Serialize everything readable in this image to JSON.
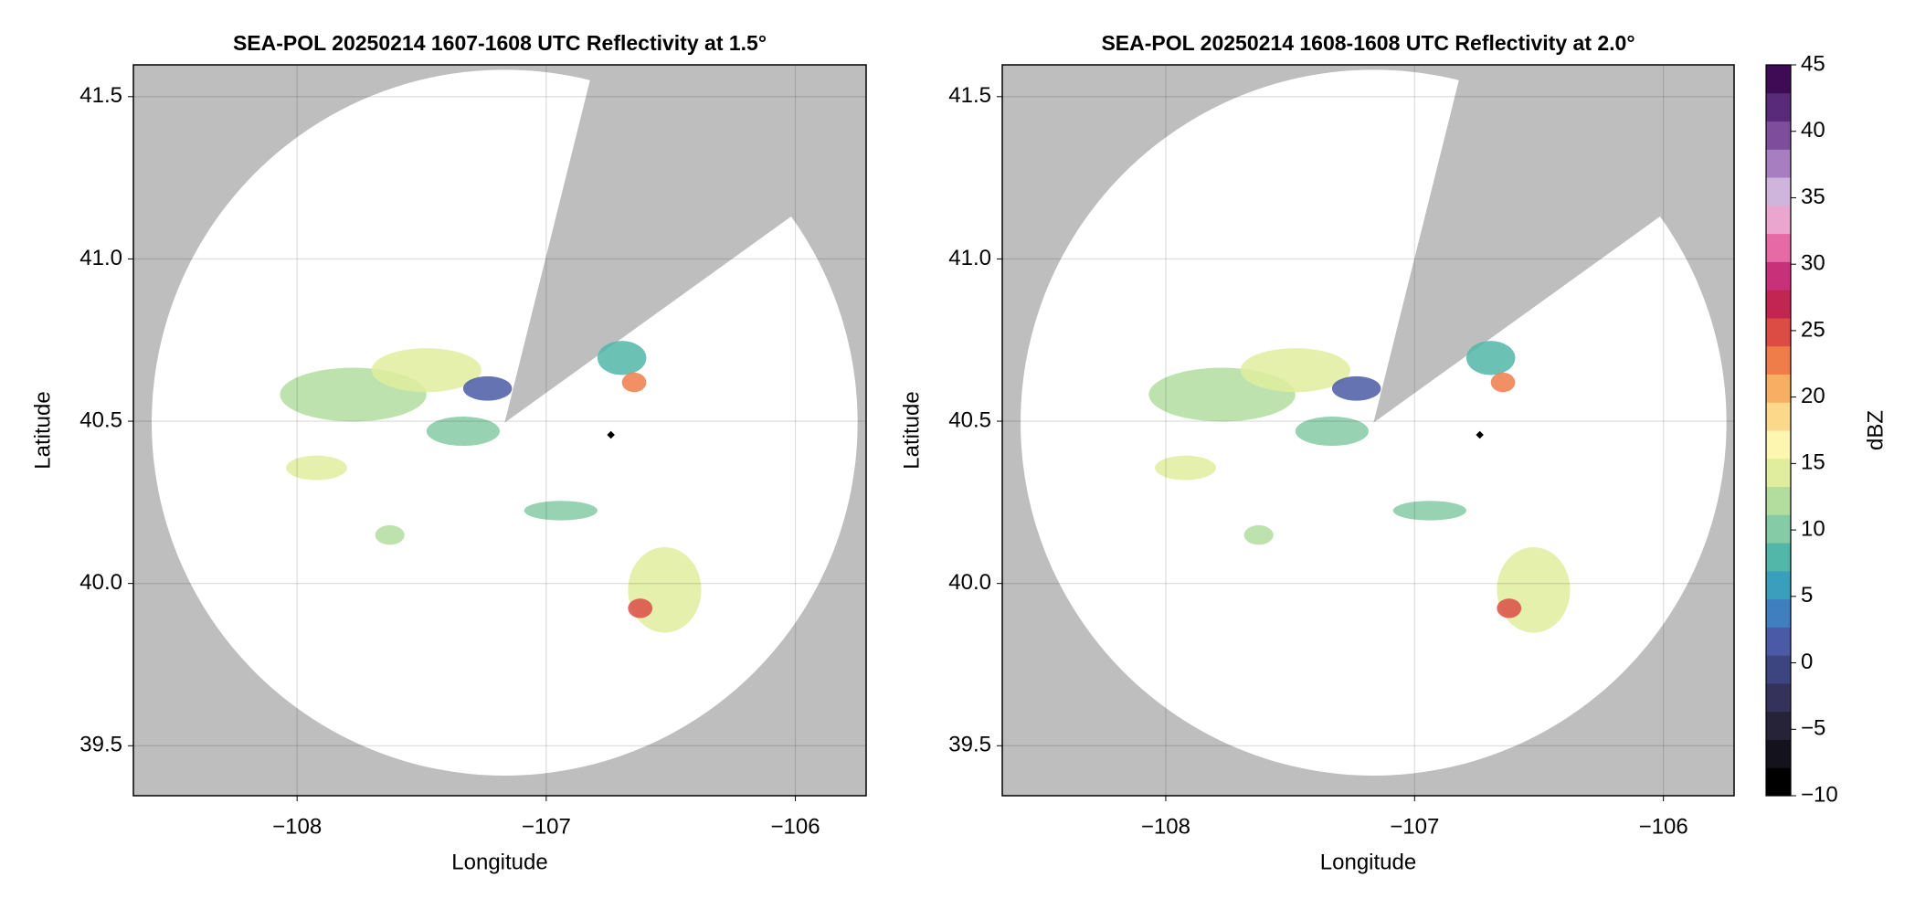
{
  "chart_data": [
    {
      "type": "radar",
      "title": "SEA-POL 20250214 1607-1608 UTC Reflectivity at 1.5°",
      "xlabel": "Longitude",
      "ylabel": "Latitude",
      "xlim": [
        -108.657,
        -105.716
      ],
      "ylim": [
        39.346,
        41.598
      ],
      "xticks": [
        {
          "value": -108,
          "label": "−108"
        },
        {
          "value": -107,
          "label": "−107"
        },
        {
          "value": -106,
          "label": "−106"
        }
      ],
      "yticks": [
        39.5,
        {
          "value": 40,
          "label": "40.0"
        },
        40.5,
        {
          "value": 41,
          "label": "41.0"
        },
        41.5
      ],
      "grid": true,
      "background": "#bebebe"
    },
    {
      "type": "radar",
      "title": "SEA-POL 20250214 1608-1608 UTC Reflectivity at 2.0°",
      "xlabel": "Longitude",
      "ylabel": "Latitude",
      "xlim": [
        -108.657,
        -105.716
      ],
      "ylim": [
        39.346,
        41.598
      ],
      "xticks": [
        {
          "value": -108,
          "label": "−108"
        },
        {
          "value": -107,
          "label": "−107"
        },
        {
          "value": -106,
          "label": "−106"
        }
      ],
      "yticks": [
        39.5,
        {
          "value": 40,
          "label": "40.0"
        },
        40.5,
        {
          "value": 41,
          "label": "41.0"
        },
        41.5
      ],
      "grid": true,
      "background": "#bebebe"
    },
    {
      "type": "colorbar",
      "label": "dBZ",
      "ylim": [
        -10,
        45
      ],
      "yticks": [
        {
          "value": -10,
          "label": "−10"
        },
        {
          "value": -5,
          "label": "−5"
        },
        0,
        5,
        10,
        15,
        20,
        25,
        30,
        35,
        40,
        45
      ],
      "colors": [
        "#000000",
        "#14121c",
        "#262338",
        "#34325a",
        "#3d4580",
        "#4a5aa6",
        "#3f7fbf",
        "#3a9fbc",
        "#52b6a8",
        "#85cba5",
        "#b3dd9f",
        "#dfed9c",
        "#fdf6b0",
        "#fcd98a",
        "#f8ae63",
        "#ef7d4a",
        "#dc4c45",
        "#c2254f",
        "#c8307a",
        "#e56aa6",
        "#eba6cf",
        "#cfb4dc",
        "#a77fc0",
        "#7e4e9c",
        "#5a2a7a",
        "#3e0c55"
      ]
    }
  ]
}
